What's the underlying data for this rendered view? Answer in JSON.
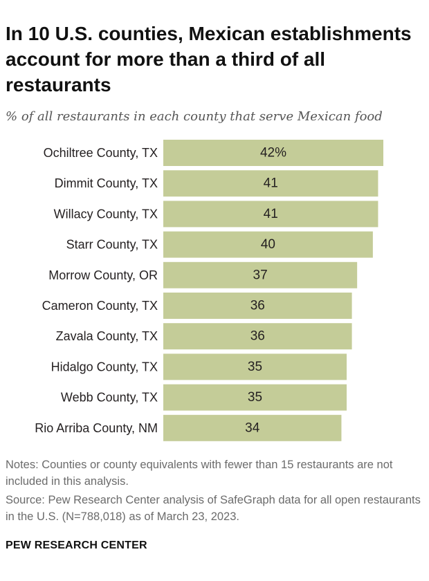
{
  "title": "In 10 U.S. counties, Mexican establishments account for more than a third of all restaurants",
  "subtitle": "% of all restaurants in each county that serve Mexican food",
  "notes": "Notes: Counties or county equivalents with fewer than 15 restaurants are not included in this analysis.",
  "source": "Source: Pew Research Center analysis of SafeGraph data for all open restaurants in the U.S. (N=788,018) as of March 23, 2023.",
  "brand": "PEW RESEARCH CENTER",
  "colors": {
    "bar": "#c4cc98",
    "text": "#231f20"
  },
  "chart_data": {
    "type": "bar",
    "orientation": "horizontal",
    "title": "In 10 U.S. counties, Mexican establishments account for more than a third of all restaurants",
    "subtitle": "% of all restaurants in each county that serve Mexican food",
    "xlabel": "",
    "ylabel": "",
    "xlim": [
      0,
      42
    ],
    "categories": [
      "Ochiltree County, TX",
      "Dimmit County, TX",
      "Willacy County, TX",
      "Starr County, TX",
      "Morrow County, OR",
      "Cameron County, TX",
      "Zavala County, TX",
      "Hidalgo County, TX",
      "Webb County, TX",
      "Rio Arriba County, NM"
    ],
    "values": [
      42,
      41,
      41,
      40,
      37,
      36,
      36,
      35,
      35,
      34
    ],
    "value_labels": [
      "42%",
      "41",
      "41",
      "40",
      "37",
      "36",
      "36",
      "35",
      "35",
      "34"
    ]
  }
}
